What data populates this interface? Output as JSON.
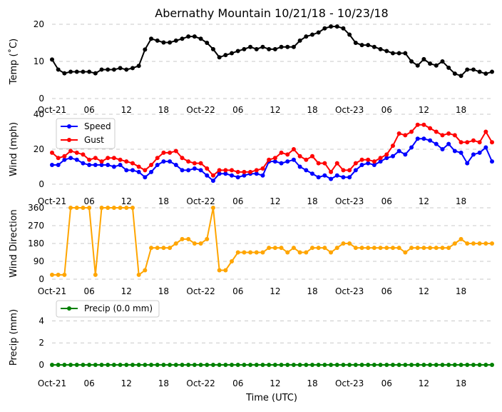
{
  "chart_data": {
    "type": "line",
    "title": "Abernathy Mountain 10/21/18 - 10/23/18",
    "xlabel": "Time (UTC)",
    "x_tick_labels": [
      "Oct-21",
      "06",
      "12",
      "18",
      "Oct-22",
      "06",
      "12",
      "18",
      "Oct-23",
      "06",
      "12",
      "18"
    ],
    "x_hours_range": [
      0,
      71
    ],
    "panels": [
      {
        "name": "temp",
        "ylabel": "Temp (˚C)",
        "ylim": [
          0,
          20
        ],
        "yticks": [
          "0",
          "10",
          "20"
        ],
        "legend": false,
        "series": [
          {
            "name": "Temp",
            "color": "#000000",
            "values": [
              10.5,
              7.8,
              6.8,
              7.2,
              7.2,
              7.2,
              7.2,
              6.8,
              7.8,
              7.8,
              7.8,
              8.2,
              7.8,
              8.2,
              8.8,
              13.2,
              16.1,
              15.6,
              15.1,
              15.1,
              15.6,
              16.1,
              16.7,
              16.7,
              16.1,
              15.0,
              13.3,
              11.1,
              11.7,
              12.2,
              12.8,
              13.3,
              13.9,
              13.3,
              13.9,
              13.3,
              13.3,
              13.9,
              13.9,
              13.9,
              15.6,
              16.7,
              17.2,
              17.8,
              18.9,
              19.4,
              19.4,
              18.9,
              17.2,
              15.0,
              14.4,
              14.4,
              13.9,
              13.3,
              12.8,
              12.2,
              12.2,
              12.2,
              10.0,
              8.9,
              10.6,
              9.4,
              8.9,
              10.0,
              8.3,
              6.7,
              6.1,
              7.8,
              7.8,
              7.2,
              6.7,
              7.2
            ]
          }
        ]
      },
      {
        "name": "wind",
        "ylabel": "Wind (mph)",
        "ylim": [
          0,
          40
        ],
        "yticks": [
          "0",
          "20",
          "40"
        ],
        "legend": true,
        "series": [
          {
            "name": "Speed",
            "color": "#0000ff",
            "values": [
              11,
              11,
              14,
              15,
              14,
              12,
              11,
              11,
              11,
              11,
              10,
              11,
              8,
              8,
              7,
              4,
              7,
              11,
              13,
              13,
              11,
              8,
              8,
              9,
              8,
              5,
              2,
              6,
              6,
              5,
              4,
              5,
              6,
              6,
              5,
              13,
              13,
              12,
              13,
              14,
              10,
              8,
              6,
              4,
              5,
              3,
              5,
              4,
              4,
              8,
              11,
              12,
              11,
              13,
              15,
              16,
              19,
              17,
              21,
              26,
              26,
              25,
              23,
              20,
              23,
              19,
              18,
              12,
              17,
              18,
              21,
              13
            ]
          },
          {
            "name": "Gust",
            "color": "#ff0000",
            "values": [
              18,
              15,
              16,
              19,
              18,
              17,
              14,
              15,
              13,
              15,
              15,
              14,
              13,
              12,
              10,
              8,
              11,
              15,
              18,
              18,
              19,
              15,
              13,
              12,
              12,
              9,
              5,
              8,
              8,
              8,
              7,
              7,
              7,
              8,
              9,
              14,
              15,
              18,
              17,
              20,
              16,
              14,
              16,
              12,
              12,
              7,
              12,
              8,
              8,
              12,
              14,
              14,
              13,
              15,
              17,
              22,
              29,
              28,
              30,
              34,
              34,
              32,
              30,
              28,
              29,
              28,
              24,
              24,
              25,
              24,
              30,
              24
            ]
          }
        ]
      },
      {
        "name": "direction",
        "ylabel": "Wind Direction",
        "ylim": [
          0,
          360
        ],
        "yticks": [
          "0",
          "90",
          "180",
          "270",
          "360"
        ],
        "legend": false,
        "series": [
          {
            "name": "Direction",
            "color": "#ffa500",
            "values": [
              22,
              22,
              22,
              360,
              360,
              360,
              360,
              22,
              360,
              360,
              360,
              360,
              360,
              360,
              22,
              45,
              158,
              158,
              158,
              158,
              180,
              202,
              202,
              180,
              180,
              202,
              360,
              45,
              45,
              90,
              135,
              135,
              135,
              135,
              135,
              158,
              158,
              158,
              135,
              158,
              135,
              135,
              158,
              158,
              158,
              135,
              158,
              180,
              180,
              158,
              158,
              158,
              158,
              158,
              158,
              158,
              158,
              135,
              158,
              158,
              158,
              158,
              158,
              158,
              158,
              180,
              202,
              180,
              180,
              180,
              180,
              180
            ]
          }
        ]
      },
      {
        "name": "precip",
        "ylabel": "Precip (mm)",
        "ylim": [
          0,
          5
        ],
        "yticks": [
          "0",
          "2",
          "4"
        ],
        "legend": true,
        "series": [
          {
            "name": "Precip (0.0 mm)",
            "color": "#008000",
            "values": [
              0,
              0,
              0,
              0,
              0,
              0,
              0,
              0,
              0,
              0,
              0,
              0,
              0,
              0,
              0,
              0,
              0,
              0,
              0,
              0,
              0,
              0,
              0,
              0,
              0,
              0,
              0,
              0,
              0,
              0,
              0,
              0,
              0,
              0,
              0,
              0,
              0,
              0,
              0,
              0,
              0,
              0,
              0,
              0,
              0,
              0,
              0,
              0,
              0,
              0,
              0,
              0,
              0,
              0,
              0,
              0,
              0,
              0,
              0,
              0,
              0,
              0,
              0,
              0,
              0,
              0,
              0,
              0,
              0,
              0,
              0,
              0
            ]
          }
        ]
      }
    ]
  }
}
